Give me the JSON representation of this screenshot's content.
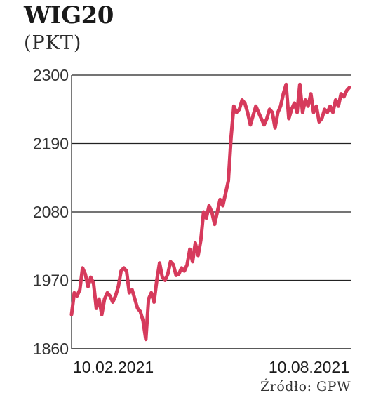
{
  "title": "WIG20",
  "subtitle": "(PKT)",
  "source": "Źródło: GPW",
  "colors": {
    "line": "#d63a5c",
    "grid": "#222222",
    "text": "#222222"
  },
  "chart_data": {
    "type": "line",
    "title": "WIG20",
    "ylabel": "(PKT)",
    "xlabel": "",
    "ylim": [
      1860,
      2300
    ],
    "yticks": [
      2300,
      2190,
      2080,
      1970,
      1860
    ],
    "xtick_labels": [
      "10.02.2021",
      "10.08.2021"
    ],
    "x_range": [
      "10.02.2021",
      "10.08.2021"
    ],
    "grid": true,
    "series": [
      {
        "values": [
          1915,
          1950,
          1945,
          1955,
          1990,
          1980,
          1960,
          1975,
          1965,
          1925,
          1940,
          1915,
          1940,
          1950,
          1945,
          1935,
          1945,
          1960,
          1985,
          1990,
          1985,
          1950,
          1955,
          1940,
          1925,
          1920,
          1905,
          1875,
          1940,
          1950,
          1935,
          1970,
          1998,
          1975,
          1970,
          1980,
          2000,
          1995,
          1978,
          1980,
          1990,
          1985,
          1995,
          2020,
          2000,
          2030,
          2010,
          2035,
          2080,
          2070,
          2090,
          2080,
          2060,
          2080,
          2100,
          2090,
          2110,
          2130,
          2200,
          2250,
          2240,
          2245,
          2260,
          2255,
          2240,
          2220,
          2235,
          2250,
          2240,
          2230,
          2220,
          2230,
          2245,
          2240,
          2215,
          2240,
          2250,
          2270,
          2285,
          2230,
          2245,
          2255,
          2240,
          2285,
          2240,
          2260,
          2250,
          2270,
          2240,
          2250,
          2225,
          2230,
          2245,
          2240,
          2250,
          2240,
          2260,
          2250,
          2270,
          2265,
          2275,
          2280
        ]
      }
    ]
  }
}
